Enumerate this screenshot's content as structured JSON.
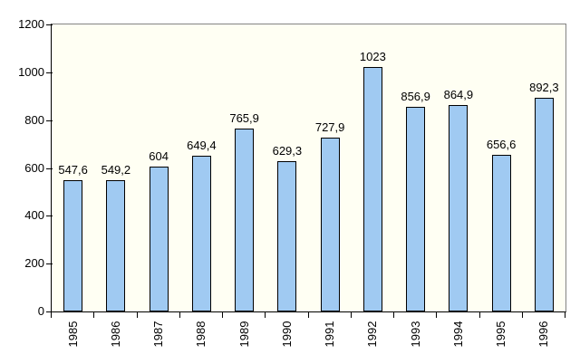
{
  "chart_data": {
    "type": "bar",
    "title": "",
    "xlabel": "",
    "ylabel": "",
    "categories": [
      "1985",
      "1986",
      "1987",
      "1988",
      "1989",
      "1990",
      "1991",
      "1992",
      "1993",
      "1994",
      "1995",
      "1996"
    ],
    "values": [
      547.6,
      549.2,
      604,
      649.4,
      765.9,
      629.3,
      727.9,
      1023,
      856.9,
      864.9,
      656.6,
      892.3
    ],
    "bar_labels": [
      "547,6",
      "549,2",
      "604",
      "649,4",
      "765,9",
      "629,3",
      "727,9",
      "1023",
      "856,9",
      "864,9",
      "656,6",
      "892,3"
    ],
    "y_ticks": [
      0,
      200,
      400,
      600,
      800,
      1000,
      1200
    ],
    "y_tick_labels": [
      "0",
      "200",
      "400",
      "600",
      "800",
      "1000",
      "1200"
    ],
    "ylim": [
      0,
      1200
    ],
    "grid": false,
    "legend": "none",
    "x_label_rotation_deg": -90,
    "colors": {
      "bar_fill": "#A0CAF2",
      "bar_border": "#000000",
      "plot_bg": "#FFFFF3",
      "plot_border": "#848484",
      "axis": "#000000",
      "canvas_bg": "#FFFFFF",
      "text": "#000000"
    }
  }
}
